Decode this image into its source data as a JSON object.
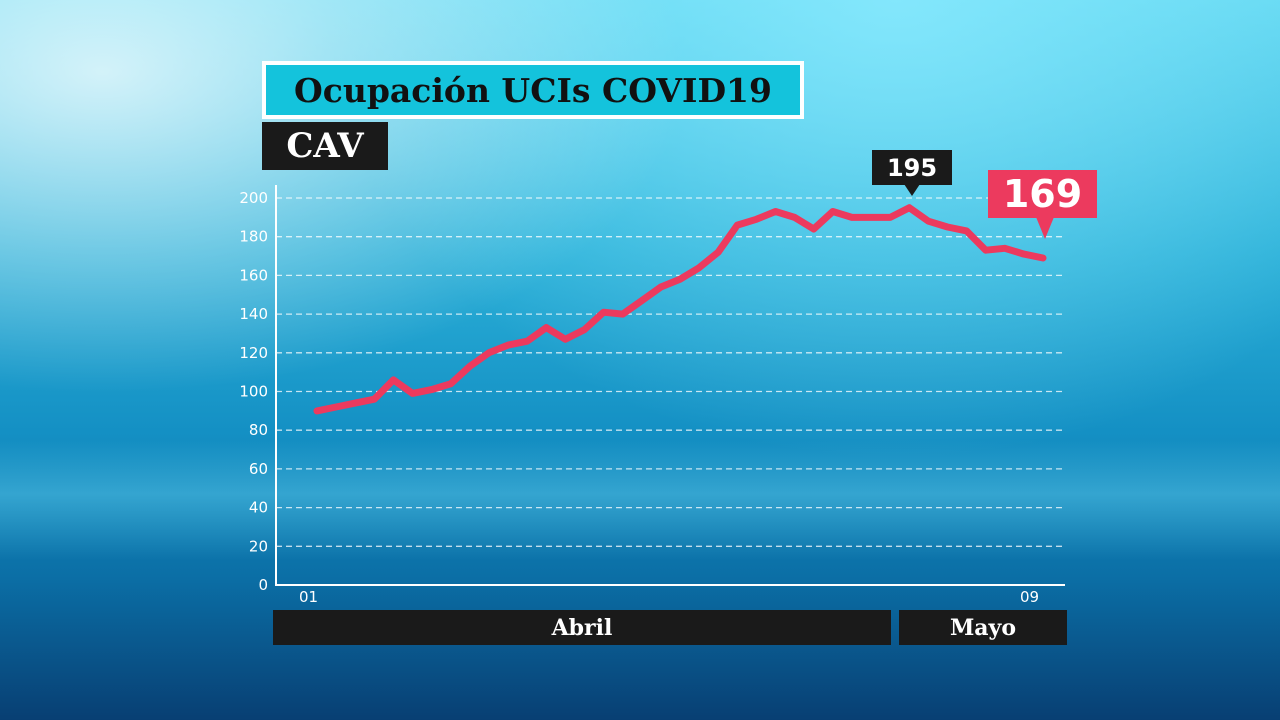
{
  "title": "Ocupación UCIs COVID19",
  "region": "CAV",
  "colors": {
    "line": "#ec3a5e",
    "title_bg": "#14c3dc",
    "label_bg": "#1a1a1a"
  },
  "x_axis": {
    "first_day": "01",
    "last_day": "09",
    "months": [
      "Abril",
      "Mayo"
    ]
  },
  "callouts": {
    "peak": "195",
    "last": "169"
  },
  "chart_data": {
    "type": "line",
    "title": "Ocupación UCIs COVID19",
    "subtitle": "CAV",
    "xlabel": "",
    "ylabel": "",
    "ylim": [
      0,
      200
    ],
    "yticks": [
      0,
      20,
      40,
      60,
      80,
      100,
      120,
      140,
      160,
      180,
      200
    ],
    "grid": true,
    "x_start": "01 Abril",
    "x_end": "09 Mayo",
    "series": [
      {
        "values": [
          90,
          92,
          94,
          96,
          106,
          99,
          101,
          104,
          113,
          120,
          124,
          126,
          133,
          127,
          132,
          141,
          140,
          147,
          154,
          158,
          164,
          172,
          186,
          189,
          193,
          190,
          184,
          193,
          190,
          190,
          190,
          195,
          188,
          185,
          183,
          173,
          174,
          171,
          169
        ]
      }
    ]
  }
}
